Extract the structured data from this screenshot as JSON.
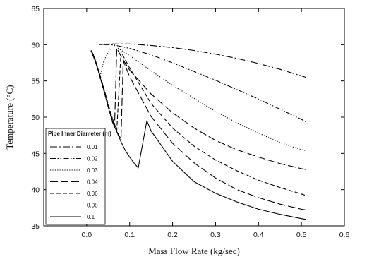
{
  "chart_data": {
    "type": "line",
    "title": "",
    "xlabel": "Mass Flow Rate (kg/sec)",
    "ylabel": "Temperature (°C)",
    "xlim": [
      -0.1,
      0.6
    ],
    "ylim": [
      35,
      65
    ],
    "x_ticks": [
      0.0,
      0.1,
      0.2,
      0.3,
      0.4,
      0.5,
      0.6
    ],
    "x_tick_labels": [
      "0.0",
      "0.1",
      "0.2",
      "0.3",
      "0.4",
      "0.5",
      "0.6"
    ],
    "y_ticks": [
      35,
      40,
      45,
      50,
      55,
      60,
      65
    ],
    "y_tick_labels": [
      "35",
      "40",
      "45",
      "50",
      "55",
      "60",
      "65"
    ],
    "grid": false,
    "legend_title": "Pipe Inner Diameter (m)",
    "legend_position": "bottom-left",
    "series": [
      {
        "name": "0.01",
        "dash": "long-dash-dot",
        "x": [
          0.03,
          0.05,
          0.1,
          0.15,
          0.2,
          0.25,
          0.3,
          0.35,
          0.4,
          0.45,
          0.5,
          0.51
        ],
        "y": [
          60.0,
          60.1,
          60.1,
          59.9,
          59.6,
          59.2,
          58.7,
          58.1,
          57.4,
          56.6,
          55.7,
          55.5
        ]
      },
      {
        "name": "0.02",
        "dash": "dash-dot-dot",
        "x": [
          0.04,
          0.06,
          0.1,
          0.15,
          0.2,
          0.25,
          0.3,
          0.35,
          0.4,
          0.45,
          0.5,
          0.51
        ],
        "y": [
          60.0,
          60.0,
          59.5,
          58.6,
          57.5,
          56.3,
          55.1,
          53.8,
          52.5,
          51.1,
          49.7,
          49.4
        ]
      },
      {
        "name": "0.03",
        "dash": "dotted",
        "x": [
          0.03,
          0.04,
          0.06,
          0.1,
          0.15,
          0.2,
          0.25,
          0.3,
          0.35,
          0.4,
          0.45,
          0.5,
          0.51
        ],
        "y": [
          55.3,
          57.8,
          60.0,
          58.5,
          56.4,
          54.4,
          52.6,
          50.8,
          49.2,
          47.8,
          46.5,
          45.5,
          45.4
        ]
      },
      {
        "name": "0.04",
        "dash": "long-dash",
        "x": [
          0.01,
          0.015,
          0.02,
          0.03,
          0.04,
          0.05,
          0.06,
          0.065,
          0.07,
          0.08,
          0.1,
          0.15,
          0.2,
          0.25,
          0.3,
          0.35,
          0.4,
          0.45,
          0.5,
          0.51
        ],
        "y": [
          59.2,
          58.7,
          57.8,
          55.8,
          53.6,
          51.6,
          49.7,
          48.8,
          59.5,
          58.4,
          56.5,
          53.2,
          50.6,
          48.5,
          46.8,
          45.5,
          44.5,
          43.6,
          42.9,
          42.8
        ]
      },
      {
        "name": "0.06",
        "dash": "dash",
        "x": [
          0.01,
          0.02,
          0.03,
          0.04,
          0.05,
          0.06,
          0.07,
          0.08,
          0.09,
          0.1,
          0.15,
          0.2,
          0.25,
          0.3,
          0.35,
          0.4,
          0.45,
          0.5,
          0.51
        ],
        "y": [
          59.2,
          57.9,
          56.0,
          54.0,
          51.8,
          49.8,
          48.2,
          59.0,
          57.9,
          56.8,
          51.9,
          48.5,
          46.0,
          44.1,
          42.6,
          41.3,
          40.3,
          39.4,
          39.2
        ]
      },
      {
        "name": "0.08",
        "dash": "long-dash",
        "x": [
          0.01,
          0.02,
          0.03,
          0.04,
          0.05,
          0.06,
          0.07,
          0.08,
          0.085,
          0.1,
          0.15,
          0.2,
          0.25,
          0.3,
          0.35,
          0.4,
          0.45,
          0.5,
          0.51
        ],
        "y": [
          59.2,
          57.9,
          56.0,
          53.9,
          51.5,
          49.3,
          48.0,
          47.0,
          57.8,
          55.6,
          50.1,
          46.4,
          43.7,
          41.6,
          40.0,
          38.9,
          38.0,
          37.3,
          37.2
        ]
      },
      {
        "name": "0.1",
        "dash": "solid",
        "x": [
          0.01,
          0.02,
          0.03,
          0.04,
          0.05,
          0.06,
          0.07,
          0.08,
          0.09,
          0.1,
          0.11,
          0.12,
          0.14,
          0.15,
          0.2,
          0.25,
          0.3,
          0.35,
          0.4,
          0.45,
          0.5,
          0.51
        ],
        "y": [
          59.2,
          57.7,
          55.8,
          53.7,
          51.4,
          49.4,
          48.0,
          46.6,
          45.4,
          44.5,
          43.7,
          43.0,
          49.5,
          48.1,
          43.9,
          41.1,
          39.5,
          38.3,
          37.3,
          36.6,
          36.0,
          35.9
        ]
      }
    ]
  }
}
